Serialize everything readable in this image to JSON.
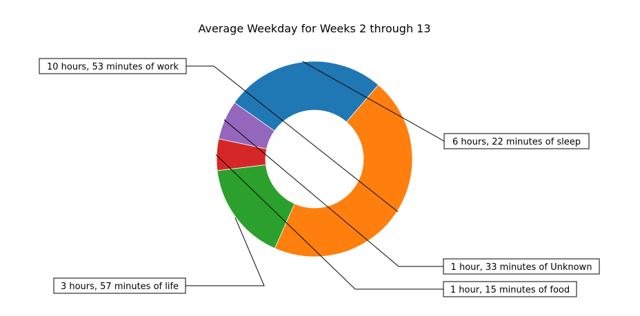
{
  "chart_data": {
    "type": "donut",
    "title": "Average Weekday for Weeks 2 through 13",
    "slices": [
      {
        "category": "sleep",
        "label": " 6 hours, 22 minutes of sleep",
        "minutes": 382,
        "color": "#1f77b4"
      },
      {
        "category": "work",
        "label": "10 hours, 53 minutes of work",
        "minutes": 653,
        "color": "#ff7f0e"
      },
      {
        "category": "life",
        "label": "3 hours, 57 minutes of life",
        "minutes": 237,
        "color": "#2ca02c"
      },
      {
        "category": "food",
        "label": "1 hour, 15 minutes of food",
        "minutes": 75,
        "color": "#d62728"
      },
      {
        "category": "Unknown",
        "label": "1 hour, 33 minutes of Unknown",
        "minutes": 93,
        "color": "#9467bd"
      }
    ],
    "legend": "none"
  }
}
